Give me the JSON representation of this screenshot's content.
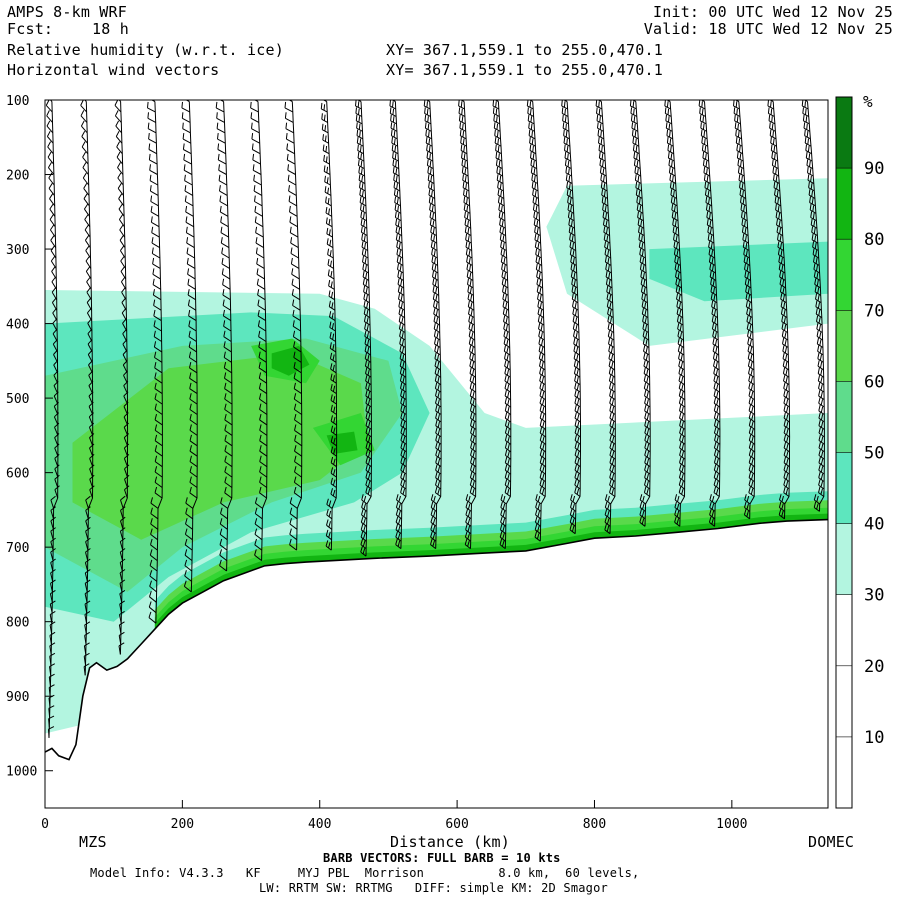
{
  "header": {
    "model": "AMPS 8-km WRF",
    "fcst_label": "Fcst:",
    "fcst_value": "18 h",
    "init": "Init: 00 UTC Wed 12 Nov 25",
    "valid": "Valid: 18 UTC Wed 12 Nov 25",
    "field1": "Relative humidity (w.r.t. ice)",
    "field2": "Horizontal wind vectors",
    "xy1": "XY= 367.1,559.1 to 255.0,470.1",
    "xy2": "XY= 367.1,559.1 to 255.0,470.1"
  },
  "footer": {
    "left_station": "MZS",
    "right_station": "DOMEC",
    "barb_note": "BARB VECTORS: FULL BARB = 10 kts",
    "model_info": "Model Info: V4.3.3   KF     MYJ PBL  Morrison          8.0 km,  60 levels,",
    "model_info2": "LW: RRTM SW: RRTMG   DIFF: simple KM: 2D Smagor"
  },
  "colors": {
    "rh_30_40": "#b3f5e0",
    "rh_40_50": "#5de6be",
    "rh_50_60": "#5fdc8c",
    "rh_60_70": "#5ad94b",
    "rh_70_80": "#33d633",
    "rh_80_90": "#12b512",
    "rh_90_100": "#0a7a12",
    "terrain_line": "#000000",
    "barbs": "#000000"
  },
  "chart_data": {
    "type": "heatmap",
    "xlabel": "Distance (km)",
    "ylabel": "",
    "xlim": [
      0,
      1140
    ],
    "ylim": [
      1050,
      100
    ],
    "x_ticks": [
      0,
      200,
      400,
      600,
      800,
      1000
    ],
    "y_ticks": [
      100,
      200,
      300,
      400,
      500,
      600,
      700,
      800,
      900,
      1000
    ],
    "colorbar": {
      "unit": "%",
      "levels": [
        10,
        20,
        30,
        40,
        50,
        60,
        70,
        80,
        90
      ],
      "bin_colors": [
        "#ffffff",
        "#ffffff",
        "#ffffff",
        "#b3f5e0",
        "#5de6be",
        "#5fdc8c",
        "#5ad94b",
        "#33d633",
        "#12b512",
        "#0a7a12"
      ]
    },
    "terrain_surface_hpa": {
      "x": [
        0,
        10,
        20,
        35,
        45,
        55,
        65,
        75,
        90,
        105,
        120,
        140,
        160,
        180,
        200,
        230,
        260,
        290,
        320,
        350,
        380,
        420,
        480,
        560,
        640,
        700,
        760,
        800,
        860,
        920,
        980,
        1040,
        1080,
        1140
      ],
      "p": [
        975,
        970,
        980,
        985,
        965,
        900,
        862,
        855,
        865,
        860,
        850,
        830,
        810,
        790,
        775,
        760,
        745,
        735,
        725,
        722,
        720,
        718,
        715,
        712,
        708,
        705,
        695,
        688,
        685,
        680,
        675,
        668,
        665,
        663
      ]
    },
    "rh_regions": [
      {
        "bin": "30-40",
        "polygon": [
          [
            0,
            355
          ],
          [
            400,
            360
          ],
          [
            480,
            380
          ],
          [
            560,
            430
          ],
          [
            640,
            520
          ],
          [
            700,
            540
          ],
          [
            1140,
            520
          ],
          [
            1140,
            700
          ],
          [
            0,
            950
          ]
        ]
      },
      {
        "bin": "30-40",
        "polygon": [
          [
            760,
            215
          ],
          [
            1140,
            205
          ],
          [
            1140,
            400
          ],
          [
            880,
            430
          ],
          [
            760,
            360
          ],
          [
            730,
            270
          ]
        ]
      },
      {
        "bin": "40-50",
        "polygon": [
          [
            0,
            400
          ],
          [
            300,
            385
          ],
          [
            420,
            390
          ],
          [
            520,
            440
          ],
          [
            560,
            520
          ],
          [
            520,
            600
          ],
          [
            450,
            640
          ],
          [
            300,
            680
          ],
          [
            180,
            740
          ],
          [
            100,
            800
          ],
          [
            0,
            780
          ]
        ]
      },
      {
        "bin": "40-50",
        "polygon": [
          [
            880,
            300
          ],
          [
            1140,
            290
          ],
          [
            1140,
            360
          ],
          [
            960,
            370
          ],
          [
            880,
            340
          ]
        ]
      },
      {
        "bin": "50-60",
        "polygon": [
          [
            0,
            470
          ],
          [
            200,
            430
          ],
          [
            380,
            420
          ],
          [
            500,
            450
          ],
          [
            520,
            520
          ],
          [
            460,
            600
          ],
          [
            330,
            640
          ],
          [
            200,
            700
          ],
          [
            120,
            760
          ],
          [
            0,
            700
          ]
        ]
      },
      {
        "bin": "60-70",
        "polygon": [
          [
            40,
            560
          ],
          [
            180,
            460
          ],
          [
            360,
            440
          ],
          [
            460,
            480
          ],
          [
            470,
            560
          ],
          [
            400,
            610
          ],
          [
            260,
            640
          ],
          [
            140,
            690
          ],
          [
            40,
            640
          ]
        ]
      },
      {
        "bin": "70-80",
        "polygon": [
          [
            300,
            430
          ],
          [
            360,
            420
          ],
          [
            400,
            450
          ],
          [
            380,
            480
          ],
          [
            320,
            470
          ]
        ]
      },
      {
        "bin": "70-80",
        "polygon": [
          [
            390,
            540
          ],
          [
            460,
            520
          ],
          [
            480,
            570
          ],
          [
            430,
            590
          ]
        ]
      },
      {
        "bin": "80-90",
        "polygon": [
          [
            330,
            440
          ],
          [
            370,
            430
          ],
          [
            385,
            455
          ],
          [
            355,
            470
          ],
          [
            330,
            460
          ]
        ]
      },
      {
        "bin": "80-90",
        "polygon": [
          [
            410,
            550
          ],
          [
            450,
            545
          ],
          [
            455,
            570
          ],
          [
            420,
            575
          ]
        ]
      }
    ],
    "surface_band_bins": [
      "40-50",
      "60-70",
      "70-80",
      "80-90"
    ],
    "wind_profile_columns_km": [
      10,
      60,
      110,
      160,
      210,
      260,
      310,
      360,
      410,
      460,
      510,
      560,
      610,
      660,
      710,
      760,
      810,
      860,
      910,
      960,
      1010,
      1060,
      1110
    ],
    "barb_note": "full barb = 10 kts"
  }
}
